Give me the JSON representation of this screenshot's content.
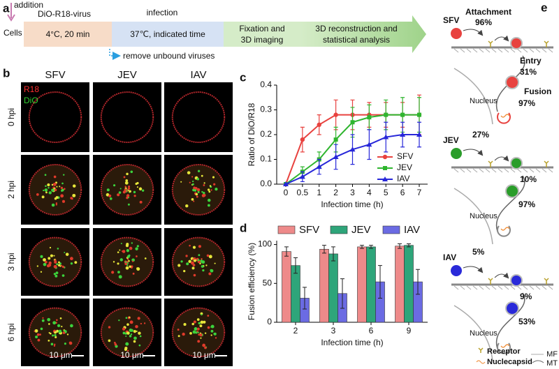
{
  "panel_labels": [
    "a",
    "b",
    "c",
    "d",
    "e"
  ],
  "workflow": {
    "addition": "addition",
    "reagent": "DiO-R18-virus",
    "phase": "infection",
    "start": "Cells",
    "steps": [
      [
        "4°C, 20 min"
      ],
      [
        "37℃, indicated time"
      ],
      [
        "Fixation and",
        "3D imaging"
      ],
      [
        "3D reconstruction and",
        "statistical analysis"
      ]
    ],
    "note": "remove unbound viruses"
  },
  "imaging": {
    "columns": [
      "SFV",
      "JEV",
      "IAV"
    ],
    "rows": [
      "0 hpi",
      "2 hpi",
      "3 hpi",
      "6 hpi"
    ],
    "channels": [
      "R18",
      "DiO"
    ],
    "scale_bar": "10 μm"
  },
  "chart_data": [
    {
      "type": "line",
      "xlabel": "Infection time (h)",
      "ylabel": "Ratio of DiO/R18",
      "categories": [
        "0",
        "0.5",
        "1",
        "2",
        "3",
        "4",
        "5",
        "6",
        "7"
      ],
      "ylim": [
        0,
        0.4
      ],
      "yticks": [
        {
          "value": 0,
          "label": "0.0"
        },
        0.1,
        0.2,
        0.3,
        0.4
      ],
      "legend": "lower right",
      "series": [
        {
          "name": "SFV",
          "color": "#e8423f",
          "marker": "circle",
          "values": [
            0,
            0.18,
            0.24,
            0.28,
            0.28,
            0.28,
            0.28,
            0.28,
            0.28
          ],
          "errors": [
            0,
            0.05,
            0.04,
            0.06,
            0.06,
            0.05,
            0.05,
            0.05,
            0.08
          ]
        },
        {
          "name": "JEV",
          "color": "#2fb52f",
          "marker": "square",
          "values": [
            0,
            0.05,
            0.1,
            0.18,
            0.25,
            0.27,
            0.28,
            0.28,
            0.28
          ],
          "errors": [
            0,
            0.02,
            0.03,
            0.05,
            0.06,
            0.05,
            0.06,
            0.07,
            0.07
          ]
        },
        {
          "name": "IAV",
          "color": "#2727d9",
          "marker": "triangle",
          "values": [
            0,
            0.03,
            0.07,
            0.11,
            0.14,
            0.16,
            0.19,
            0.2,
            0.2
          ],
          "errors": [
            0,
            0.02,
            0.03,
            0.05,
            0.06,
            0.06,
            0.06,
            0.05,
            0.05
          ]
        }
      ]
    },
    {
      "type": "bar",
      "xlabel": "Infection time (h)",
      "ylabel": "Fusion efficiency (%)",
      "categories": [
        "2",
        "3",
        "6",
        "9"
      ],
      "ylim": [
        0,
        105
      ],
      "yticks": [
        0,
        50,
        100
      ],
      "legend": "top",
      "series": [
        {
          "name": "SFV",
          "color": "#ee8a8a",
          "values": [
            91,
            94,
            97,
            98
          ],
          "errors": [
            6,
            5,
            2,
            3
          ]
        },
        {
          "name": "JEV",
          "color": "#2ea57a",
          "values": [
            73,
            88,
            97,
            99
          ],
          "errors": [
            10,
            9,
            2,
            2
          ]
        },
        {
          "name": "IAV",
          "color": "#6b6be3",
          "values": [
            31,
            37,
            52,
            52
          ],
          "errors": [
            14,
            19,
            21,
            16
          ]
        }
      ]
    }
  ],
  "diagram": {
    "step_labels": [
      "Attachment",
      "Entry",
      "Fusion"
    ],
    "sections": [
      {
        "virus": "SFV",
        "attachment": "96%",
        "entry": "31%",
        "fusion": "97%",
        "nucleus": "Nucleus"
      },
      {
        "virus": "JEV",
        "attachment": "27%",
        "entry": "10%",
        "fusion": "97%",
        "nucleus": "Nucleus"
      },
      {
        "virus": "IAV",
        "attachment": "5%",
        "entry": "9%",
        "fusion": "53%",
        "nucleus": "Nucleus"
      }
    ],
    "legend": [
      "Receptor",
      "Nuclecapsid",
      "MF",
      "MT"
    ]
  }
}
